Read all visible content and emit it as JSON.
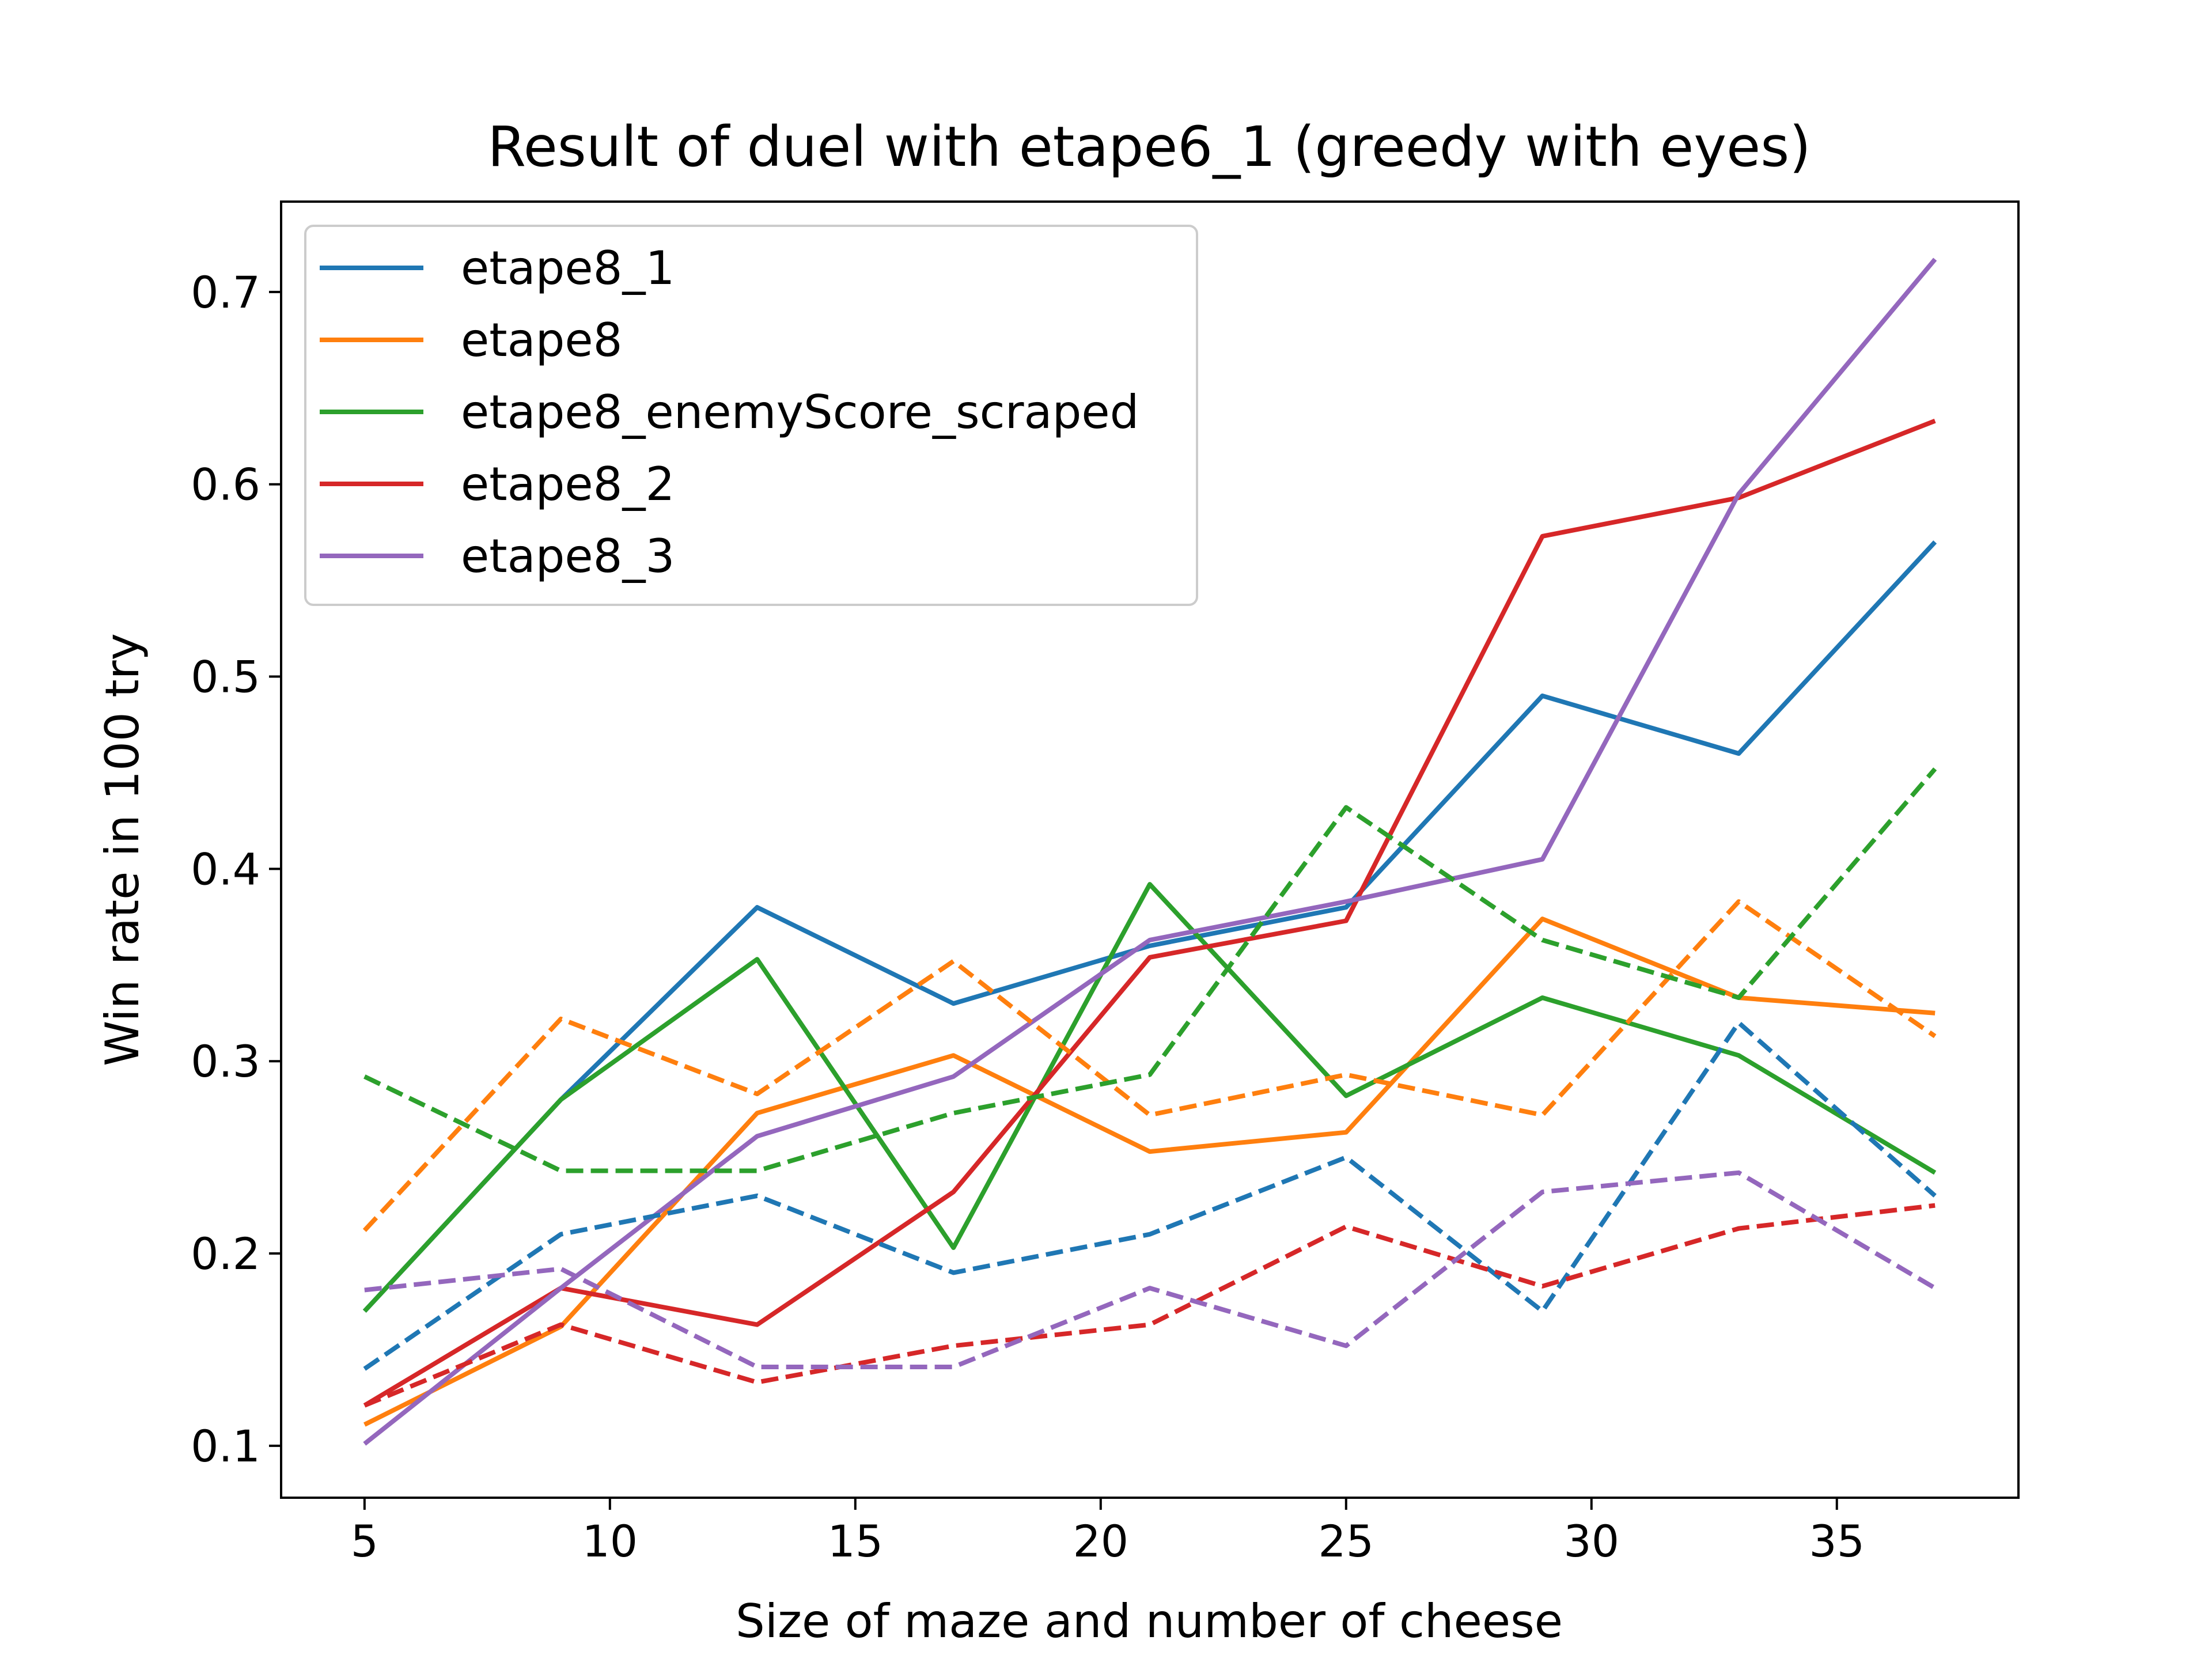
{
  "chart_data": {
    "type": "line",
    "title": "Result of duel with etape6_1 (greedy with eyes)",
    "xlabel": "Size of maze and number of cheese",
    "ylabel": "Win rate in 100 try",
    "x": [
      5,
      9,
      13,
      17,
      21,
      25,
      29,
      33,
      37
    ],
    "xlim": [
      3.3,
      38.7
    ],
    "ylim": [
      0.073,
      0.747
    ],
    "xticks": [
      5,
      10,
      15,
      20,
      25,
      30,
      35
    ],
    "yticks": [
      0.1,
      0.2,
      0.3,
      0.4,
      0.5,
      0.6,
      0.7
    ],
    "xtick_labels": [
      "5",
      "10",
      "15",
      "20",
      "25",
      "30",
      "35"
    ],
    "ytick_labels": [
      "0.1",
      "0.2",
      "0.3",
      "0.4",
      "0.5",
      "0.6",
      "0.7"
    ],
    "grid": false,
    "legend_position": "top-left",
    "series": [
      {
        "name": "etape8_1",
        "color": "#1f77b4",
        "style": "solid",
        "values": [
          0.17,
          0.28,
          0.38,
          0.33,
          0.36,
          0.38,
          0.49,
          0.46,
          0.57
        ]
      },
      {
        "name": "etape8",
        "color": "#ff7f0e",
        "style": "solid",
        "values": [
          0.111,
          0.162,
          0.273,
          0.303,
          0.253,
          0.263,
          0.374,
          0.333,
          0.325
        ]
      },
      {
        "name": "etape8_enemyScore_scraped",
        "color": "#2ca02c",
        "style": "solid",
        "values": [
          0.17,
          0.28,
          0.353,
          0.203,
          0.392,
          0.282,
          0.333,
          0.303,
          0.242
        ]
      },
      {
        "name": "etape8_2",
        "color": "#d62728",
        "style": "solid",
        "values": [
          0.121,
          0.182,
          0.163,
          0.232,
          0.354,
          0.373,
          0.573,
          0.593,
          0.633
        ]
      },
      {
        "name": "etape8_3",
        "color": "#9467bd",
        "style": "solid",
        "values": [
          0.101,
          0.182,
          0.261,
          0.292,
          0.363,
          0.383,
          0.405,
          0.595,
          0.717
        ]
      },
      {
        "color": "#1f77b4",
        "style": "dashed",
        "values": [
          0.14,
          0.21,
          0.23,
          0.19,
          0.21,
          0.25,
          0.17,
          0.32,
          0.23
        ]
      },
      {
        "color": "#ff7f0e",
        "style": "dashed",
        "values": [
          0.212,
          0.322,
          0.283,
          0.352,
          0.272,
          0.293,
          0.272,
          0.383,
          0.313
        ]
      },
      {
        "color": "#2ca02c",
        "style": "dashed",
        "values": [
          0.292,
          0.243,
          0.243,
          0.273,
          0.293,
          0.432,
          0.363,
          0.333,
          0.452
        ]
      },
      {
        "color": "#d62728",
        "style": "dashed",
        "values": [
          0.121,
          0.163,
          0.133,
          0.152,
          0.163,
          0.214,
          0.183,
          0.213,
          0.225
        ]
      },
      {
        "color": "#9467bd",
        "style": "dashed",
        "values": [
          0.181,
          0.192,
          0.141,
          0.141,
          0.182,
          0.152,
          0.232,
          0.242,
          0.182
        ]
      }
    ]
  }
}
